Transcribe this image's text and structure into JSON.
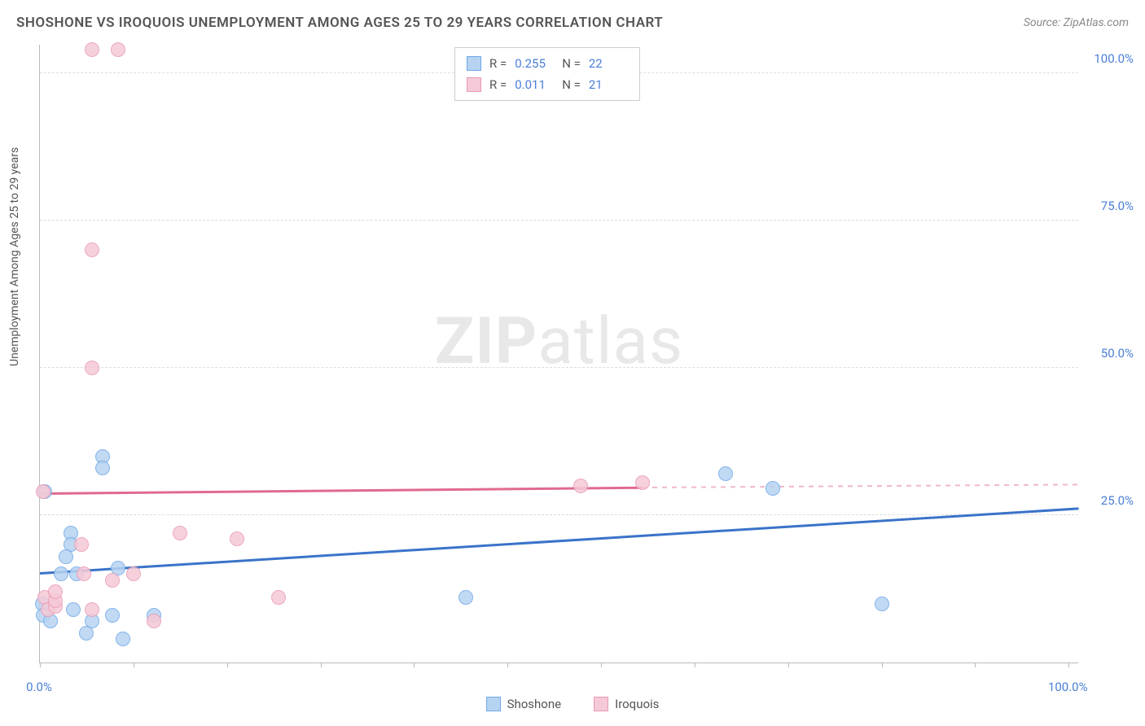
{
  "title": "SHOSHONE VS IROQUOIS UNEMPLOYMENT AMONG AGES 25 TO 29 YEARS CORRELATION CHART",
  "source": "Source: ZipAtlas.com",
  "yaxis_title": "Unemployment Among Ages 25 to 29 years",
  "watermark": {
    "bold": "ZIP",
    "rest": "atlas"
  },
  "chart": {
    "type": "scatter",
    "xlim": [
      0,
      100
    ],
    "ylim": [
      0,
      105
    ],
    "xtick_positions": [
      0,
      9,
      18,
      27,
      36,
      45,
      54,
      63,
      72,
      81,
      90,
      99
    ],
    "xtick_labels": {
      "0": "0.0%",
      "99": "100.0%"
    },
    "ytick_positions": [
      25,
      50,
      75,
      100
    ],
    "ytick_labels": [
      "25.0%",
      "50.0%",
      "75.0%",
      "100.0%"
    ],
    "background_color": "#ffffff",
    "grid_color": "#dddddd",
    "axis_color": "#bbbbbb",
    "label_color": "#4a7fd8",
    "marker_radius": 9,
    "marker_border_width": 1.5,
    "marker_fill_opacity": 0.25
  },
  "series": [
    {
      "name": "Shoshone",
      "color_border": "#6fa8e8",
      "color_fill": "#b7d3f2",
      "trend": {
        "x0": 0,
        "y0": 15,
        "x1": 100,
        "y1": 26,
        "width": 2.5,
        "color": "#3a73c9",
        "dash": false
      },
      "trend_dash": {
        "x0": 100,
        "y0": 26,
        "x1": 100,
        "y1": 26
      },
      "points": [
        {
          "x": 0.5,
          "y": 29
        },
        {
          "x": 0.2,
          "y": 10
        },
        {
          "x": 0.3,
          "y": 8
        },
        {
          "x": 1,
          "y": 7
        },
        {
          "x": 3,
          "y": 22
        },
        {
          "x": 3,
          "y": 20
        },
        {
          "x": 2.5,
          "y": 18
        },
        {
          "x": 3.5,
          "y": 15
        },
        {
          "x": 3.2,
          "y": 9
        },
        {
          "x": 6,
          "y": 35
        },
        {
          "x": 6,
          "y": 33
        },
        {
          "x": 5,
          "y": 7
        },
        {
          "x": 4.5,
          "y": 5
        },
        {
          "x": 7.5,
          "y": 16
        },
        {
          "x": 7,
          "y": 8
        },
        {
          "x": 8,
          "y": 4
        },
        {
          "x": 11,
          "y": 8
        },
        {
          "x": 41,
          "y": 11
        },
        {
          "x": 66,
          "y": 32
        },
        {
          "x": 70.5,
          "y": 29.5
        },
        {
          "x": 81,
          "y": 10
        },
        {
          "x": 2,
          "y": 15
        }
      ]
    },
    {
      "name": "Iroquois",
      "color_border": "#e89ab3",
      "color_fill": "#f5c9d7",
      "trend": {
        "x0": 0,
        "y0": 28.5,
        "x1": 58,
        "y1": 29.5,
        "width": 2.5,
        "color": "#e06a8e",
        "dash": false
      },
      "trend_dash": {
        "x0": 58,
        "y0": 29.5,
        "x1": 100,
        "y1": 30,
        "color": "#f0b8c9"
      },
      "points": [
        {
          "x": 5,
          "y": 104
        },
        {
          "x": 7.5,
          "y": 104
        },
        {
          "x": 5,
          "y": 70
        },
        {
          "x": 5,
          "y": 50
        },
        {
          "x": 0.3,
          "y": 29
        },
        {
          "x": 0.5,
          "y": 11
        },
        {
          "x": 0.8,
          "y": 9
        },
        {
          "x": 1.5,
          "y": 9.5
        },
        {
          "x": 1.5,
          "y": 10.5
        },
        {
          "x": 1.5,
          "y": 12
        },
        {
          "x": 4,
          "y": 20
        },
        {
          "x": 4.2,
          "y": 15
        },
        {
          "x": 5,
          "y": 9
        },
        {
          "x": 7,
          "y": 14
        },
        {
          "x": 9,
          "y": 15
        },
        {
          "x": 11,
          "y": 7
        },
        {
          "x": 13.5,
          "y": 22
        },
        {
          "x": 19,
          "y": 21
        },
        {
          "x": 23,
          "y": 11
        },
        {
          "x": 52,
          "y": 30
        },
        {
          "x": 58,
          "y": 30.5
        }
      ]
    }
  ],
  "stats": [
    {
      "series": 0,
      "R": "0.255",
      "N": "22"
    },
    {
      "series": 1,
      "R": "0.011",
      "N": "21"
    }
  ],
  "legend": [
    {
      "label": "Shoshone",
      "series": 0
    },
    {
      "label": "Iroquois",
      "series": 1
    }
  ]
}
